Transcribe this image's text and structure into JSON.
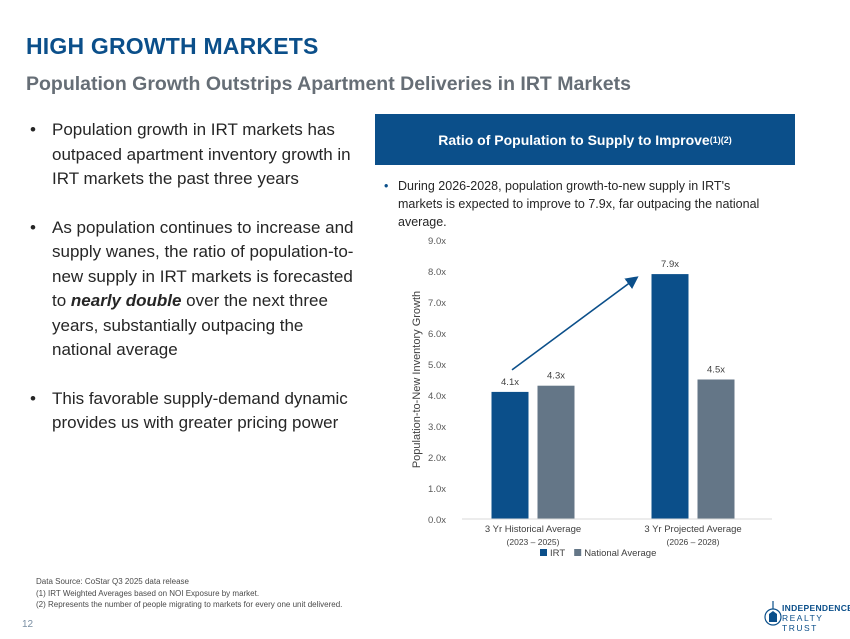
{
  "header": {
    "title": "HIGH GROWTH MARKETS",
    "subtitle": "Population Growth Outstrips Apartment Deliveries in IRT Markets"
  },
  "bullets": [
    {
      "pre": "Population growth in IRT markets has outpaced apartment inventory growth in IRT markets the past three years",
      "em": "",
      "post": ""
    },
    {
      "pre": "As population continues to increase and supply wanes, the ratio of population-to-new supply in IRT markets is forecasted to ",
      "em": "nearly double",
      "post": " over the next three years, substantially outpacing the national average"
    },
    {
      "pre": "This favorable supply-demand dynamic provides us with greater pricing power",
      "em": "",
      "post": ""
    }
  ],
  "panel": {
    "banner_title": "Ratio of Population to Supply to Improve",
    "banner_sup": "(1)(2)",
    "note": "During 2026-2028, population growth-to-new supply in IRT's markets is expected to improve to 7.9x, far outpacing the national average."
  },
  "chart_data": {
    "type": "bar",
    "categories": [
      "3 Yr Historical Average",
      "3 Yr Projected Average"
    ],
    "category_sublabels": [
      "(2023 – 2025)",
      "(2026 – 2028)"
    ],
    "series": [
      {
        "name": "IRT",
        "values": [
          4.1,
          7.9
        ],
        "color": "#0b4f8a"
      },
      {
        "name": "National Average",
        "values": [
          4.3,
          4.5
        ],
        "color": "#647687"
      }
    ],
    "data_labels": [
      [
        "4.1x",
        "7.9x"
      ],
      [
        "4.3x",
        "4.5x"
      ]
    ],
    "ylabel": "Population-to-New Inventory Growth",
    "ylim": [
      0,
      9
    ],
    "yticks": [
      "0.0x",
      "1.0x",
      "2.0x",
      "3.0x",
      "4.0x",
      "5.0x",
      "6.0x",
      "7.0x",
      "8.0x",
      "9.0x"
    ],
    "legend_position": "bottom",
    "arrow": {
      "from_series": "IRT",
      "from": 0,
      "to": 1,
      "color": "#0b4f8a"
    }
  },
  "footer": {
    "source": "Data Source: CoStar Q3 2025 data release",
    "notes": [
      "(1)  IRT Weighted Averages based on NOI Exposure by market.",
      "(2)  Represents the number of people migrating to markets for every one unit delivered."
    ],
    "page_number": "12",
    "logo_line1": "INDEPENDENCE",
    "logo_line2": "REALTY TRUST"
  }
}
